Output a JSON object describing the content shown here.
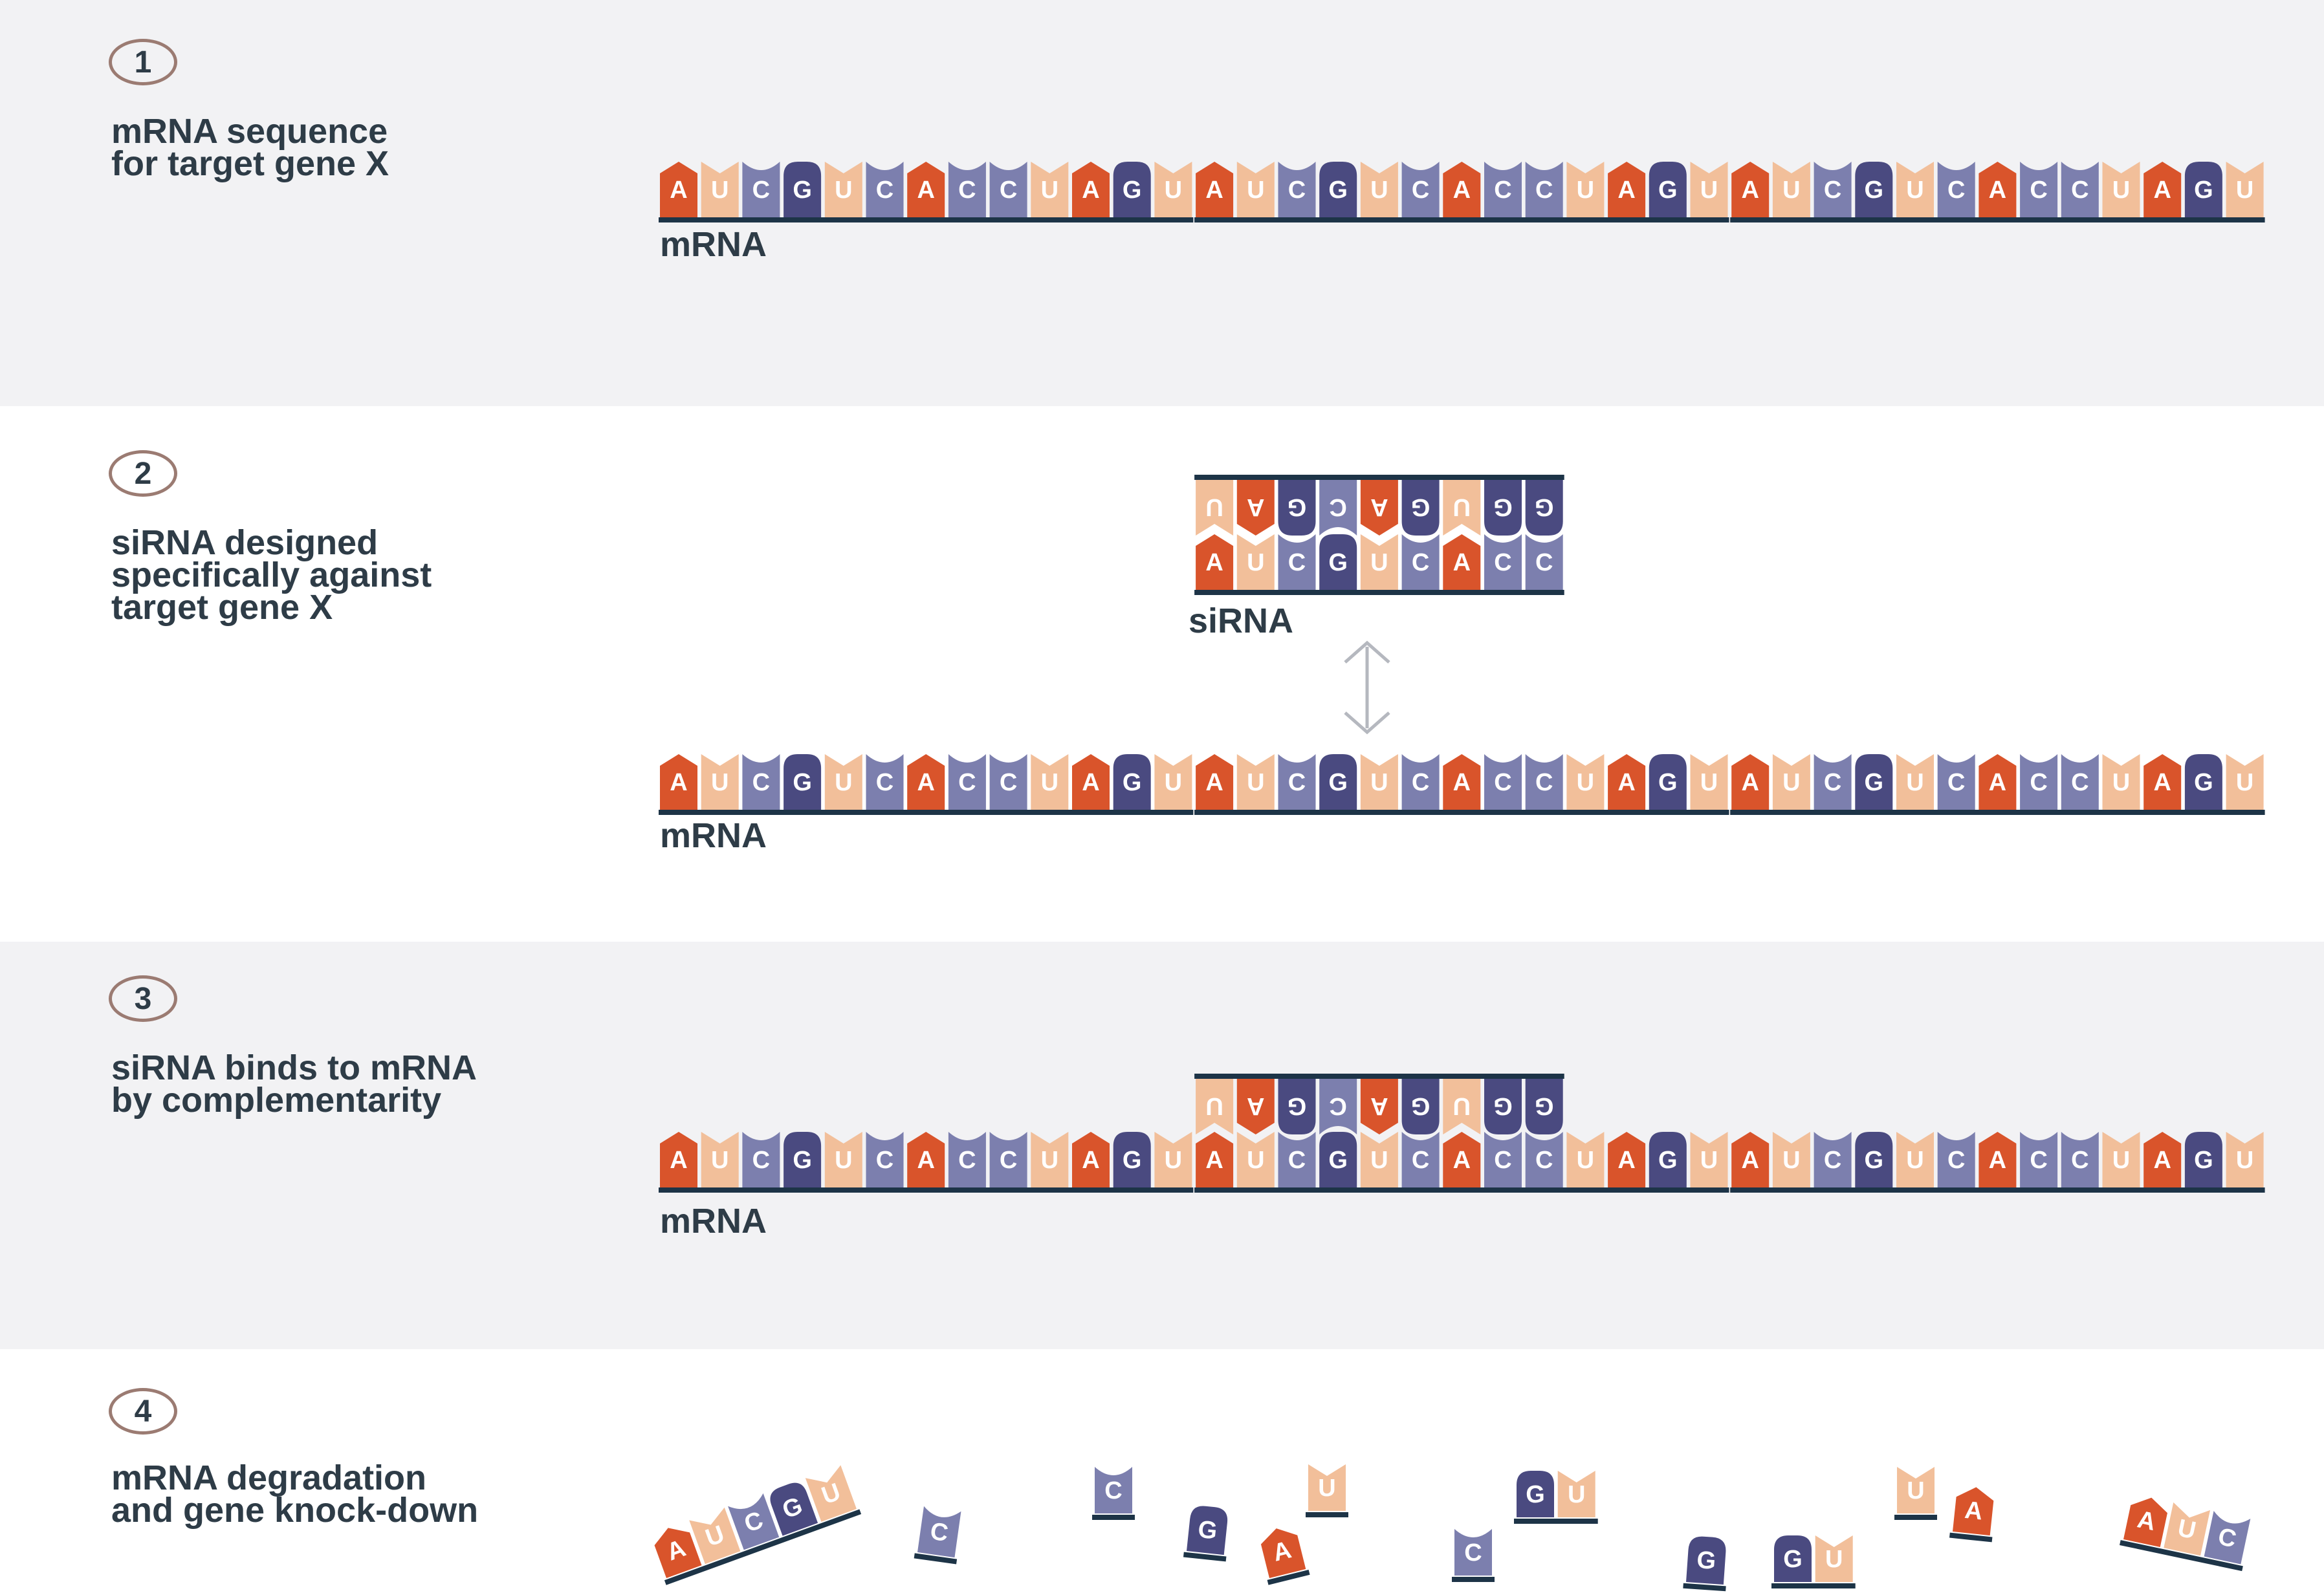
{
  "colors": {
    "A": "#d9542b",
    "U": "#f2bf9a",
    "C": "#7c7fae",
    "G": "#4a4a80",
    "backbone": "#1d3447",
    "band_gray": "#f2f2f4",
    "band_white": "#ffffff",
    "text": "#2e3c47",
    "badge_border": "#9b7b72",
    "arrow": "#b5b8bf"
  },
  "sequences": {
    "mrna": "AUCGUCACCUAGUAUCGUCACCUAGUAUCGUCACCUAGU",
    "sirna_bottom": "AUCGUCACC",
    "sirna_top": "UAGCAGUGG"
  },
  "steps": [
    {
      "number": "1",
      "text": "mRNA sequence\nfor target gene X",
      "strand_labels": [
        "mRNA"
      ]
    },
    {
      "number": "2",
      "text": "siRNA designed\nspecifically against\ntarget gene X",
      "strand_labels": [
        "siRNA",
        "mRNA"
      ]
    },
    {
      "number": "3",
      "text": "siRNA binds to mRNA\nby complementarity",
      "strand_labels": [
        "mRNA"
      ]
    },
    {
      "number": "4",
      "text": "mRNA degradation\nand gene knock-down",
      "strand_labels": []
    }
  ],
  "fragments": [
    {
      "name": "fragment-aucgu",
      "letters": "AUCGU"
    },
    {
      "name": "fragment-c-1",
      "letters": "C"
    },
    {
      "name": "fragment-c-2",
      "letters": "C"
    },
    {
      "name": "fragment-g-1",
      "letters": "G"
    },
    {
      "name": "fragment-a-1",
      "letters": "A"
    },
    {
      "name": "fragment-u-1",
      "letters": "U"
    },
    {
      "name": "fragment-c-3",
      "letters": "C"
    },
    {
      "name": "fragment-gu-1",
      "letters": "GU"
    },
    {
      "name": "fragment-g-2",
      "letters": "G"
    },
    {
      "name": "fragment-gu-2",
      "letters": "GU"
    },
    {
      "name": "fragment-u-2",
      "letters": "U"
    },
    {
      "name": "fragment-a-2",
      "letters": "A"
    },
    {
      "name": "fragment-auc",
      "letters": "AUC"
    }
  ]
}
